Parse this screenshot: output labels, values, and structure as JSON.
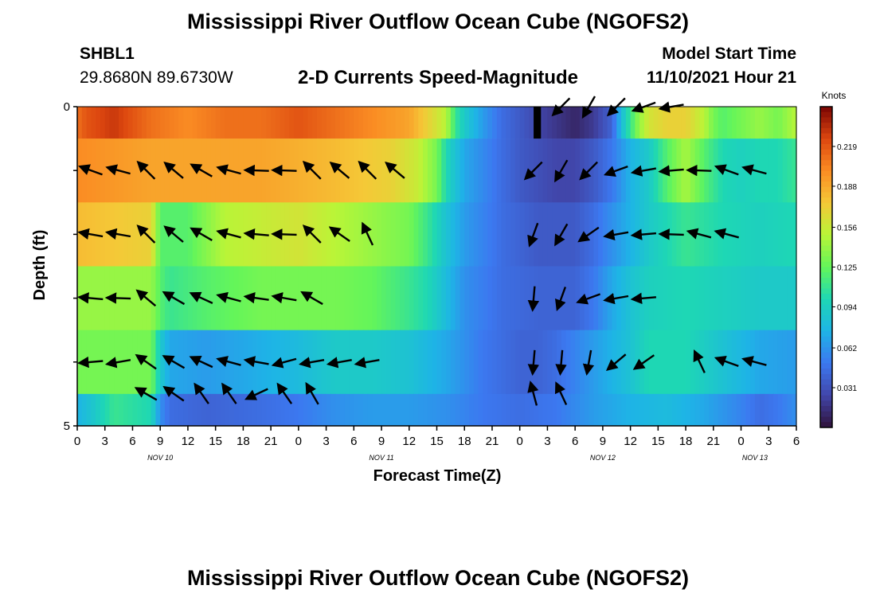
{
  "chart_data": {
    "type": "heatmap",
    "title": "Mississippi River Outflow Ocean Cube (NGOFS2)",
    "subtitle": "2-D Currents Speed-Magnitude",
    "station": {
      "id": "SHBL1",
      "coords": "29.8680N  89.6730W"
    },
    "model": {
      "start_label": "Model Start Time",
      "start_value": "11/10/2021 Hour 21"
    },
    "xlabel": "Forecast Time(Z)",
    "ylabel": "Depth (ft)",
    "x_tick_labels": [
      "0",
      "3",
      "6",
      "9",
      "12",
      "15",
      "18",
      "21",
      "0",
      "3",
      "6",
      "9",
      "12",
      "15",
      "18",
      "21",
      "0",
      "3",
      "6",
      "9",
      "12",
      "15",
      "18",
      "21",
      "0",
      "3",
      "6"
    ],
    "date_labels": [
      {
        "text": "NOV 10",
        "hour_index": 3
      },
      {
        "text": "NOV 11",
        "hour_index": 11
      },
      {
        "text": "NOV 12",
        "hour_index": 19
      },
      {
        "text": "NOV 13",
        "hour_index": 24.5
      }
    ],
    "y_tick_labels": [
      "0",
      "5"
    ],
    "ylim": [
      0,
      5
    ],
    "xlim_hours": [
      0,
      78
    ],
    "colorbar": {
      "unit": "Knots",
      "min": 0.0,
      "max": 0.25,
      "tick_values": [
        0.219,
        0.188,
        0.156,
        0.125,
        0.094,
        0.062,
        0.031
      ],
      "tick_labels": [
        "0.219",
        "0.188",
        "0.156",
        "0.125",
        "0.094",
        "0.062",
        "0.031"
      ]
    },
    "layers": [
      {
        "depth_range": [
          0,
          0.5
        ],
        "speed_keys": [
          [
            0,
            0.21
          ],
          [
            1,
            0.22
          ],
          [
            4,
            0.23
          ],
          [
            8,
            0.21
          ],
          [
            12,
            0.2
          ],
          [
            16,
            0.21
          ],
          [
            20,
            0.21
          ],
          [
            24,
            0.22
          ],
          [
            28,
            0.21
          ],
          [
            32,
            0.2
          ],
          [
            36,
            0.19
          ],
          [
            38,
            0.17
          ],
          [
            40,
            0.15
          ],
          [
            41,
            0.11
          ],
          [
            42,
            0.09
          ],
          [
            44,
            0.065
          ],
          [
            46,
            0.045
          ],
          [
            48,
            0.035
          ],
          [
            50,
            0.025
          ],
          [
            54,
            0.01
          ],
          [
            56,
            0.02
          ],
          [
            58,
            0.04
          ],
          [
            59,
            0.08
          ],
          [
            60,
            0.11
          ],
          [
            61,
            0.14
          ],
          [
            62,
            0.16
          ],
          [
            64,
            0.17
          ],
          [
            66,
            0.17
          ],
          [
            68,
            0.15
          ],
          [
            69,
            0.13
          ],
          [
            70,
            0.12
          ],
          [
            72,
            0.13
          ],
          [
            74,
            0.14
          ],
          [
            76,
            0.13
          ],
          [
            77,
            0.14
          ],
          [
            78,
            0.15
          ]
        ]
      },
      {
        "depth_range": [
          0.5,
          1.5
        ],
        "speed_keys": [
          [
            0,
            0.2
          ],
          [
            8,
            0.19
          ],
          [
            20,
            0.19
          ],
          [
            28,
            0.18
          ],
          [
            34,
            0.17
          ],
          [
            37,
            0.155
          ],
          [
            39,
            0.13
          ],
          [
            40,
            0.1
          ],
          [
            42,
            0.07
          ],
          [
            46,
            0.045
          ],
          [
            48,
            0.035
          ],
          [
            52,
            0.025
          ],
          [
            54,
            0.025
          ],
          [
            56,
            0.035
          ],
          [
            58,
            0.05
          ],
          [
            60,
            0.075
          ],
          [
            62,
            0.09
          ],
          [
            64,
            0.12
          ],
          [
            66,
            0.145
          ],
          [
            68,
            0.12
          ],
          [
            70,
            0.1
          ],
          [
            72,
            0.095
          ],
          [
            74,
            0.1
          ],
          [
            76,
            0.1
          ],
          [
            78,
            0.11
          ]
        ]
      },
      {
        "depth_range": [
          1.5,
          2.5
        ],
        "speed_keys": [
          [
            0,
            0.18
          ],
          [
            8,
            0.17
          ],
          [
            9,
            0.12
          ],
          [
            12,
            0.12
          ],
          [
            16,
            0.15
          ],
          [
            24,
            0.16
          ],
          [
            32,
            0.14
          ],
          [
            36,
            0.13
          ],
          [
            38,
            0.11
          ],
          [
            40,
            0.085
          ],
          [
            42,
            0.065
          ],
          [
            46,
            0.045
          ],
          [
            50,
            0.035
          ],
          [
            54,
            0.035
          ],
          [
            56,
            0.045
          ],
          [
            58,
            0.06
          ],
          [
            60,
            0.075
          ],
          [
            62,
            0.09
          ],
          [
            64,
            0.1
          ],
          [
            66,
            0.11
          ],
          [
            70,
            0.1
          ],
          [
            74,
            0.095
          ],
          [
            78,
            0.1
          ]
        ]
      },
      {
        "depth_range": [
          2.5,
          3.5
        ],
        "speed_keys": [
          [
            0,
            0.14
          ],
          [
            8,
            0.14
          ],
          [
            9,
            0.12
          ],
          [
            10,
            0.11
          ],
          [
            14,
            0.12
          ],
          [
            20,
            0.13
          ],
          [
            28,
            0.13
          ],
          [
            32,
            0.125
          ],
          [
            36,
            0.11
          ],
          [
            38,
            0.1
          ],
          [
            40,
            0.08
          ],
          [
            42,
            0.06
          ],
          [
            46,
            0.045
          ],
          [
            50,
            0.04
          ],
          [
            54,
            0.04
          ],
          [
            56,
            0.05
          ],
          [
            58,
            0.07
          ],
          [
            60,
            0.085
          ],
          [
            62,
            0.095
          ],
          [
            66,
            0.1
          ],
          [
            70,
            0.095
          ],
          [
            74,
            0.09
          ],
          [
            78,
            0.09
          ]
        ]
      },
      {
        "depth_range": [
          3.5,
          4.5
        ],
        "speed_keys": [
          [
            0,
            0.13
          ],
          [
            8,
            0.13
          ],
          [
            9,
            0.09
          ],
          [
            10,
            0.07
          ],
          [
            14,
            0.065
          ],
          [
            18,
            0.07
          ],
          [
            24,
            0.08
          ],
          [
            28,
            0.09
          ],
          [
            32,
            0.09
          ],
          [
            36,
            0.085
          ],
          [
            40,
            0.07
          ],
          [
            44,
            0.05
          ],
          [
            48,
            0.04
          ],
          [
            50,
            0.04
          ],
          [
            52,
            0.045
          ],
          [
            56,
            0.065
          ],
          [
            60,
            0.085
          ],
          [
            62,
            0.1
          ],
          [
            66,
            0.1
          ],
          [
            70,
            0.085
          ],
          [
            74,
            0.07
          ],
          [
            78,
            0.065
          ]
        ]
      },
      {
        "depth_range": [
          4.5,
          5.0
        ],
        "speed_keys": [
          [
            0,
            0.075
          ],
          [
            2,
            0.09
          ],
          [
            4,
            0.11
          ],
          [
            8,
            0.1
          ],
          [
            9,
            0.06
          ],
          [
            10,
            0.045
          ],
          [
            14,
            0.04
          ],
          [
            20,
            0.045
          ],
          [
            24,
            0.05
          ],
          [
            28,
            0.06
          ],
          [
            32,
            0.065
          ],
          [
            36,
            0.065
          ],
          [
            40,
            0.06
          ],
          [
            44,
            0.05
          ],
          [
            48,
            0.045
          ],
          [
            52,
            0.05
          ],
          [
            56,
            0.065
          ],
          [
            60,
            0.075
          ],
          [
            64,
            0.08
          ],
          [
            68,
            0.07
          ],
          [
            72,
            0.055
          ],
          [
            74,
            0.045
          ],
          [
            76,
            0.05
          ],
          [
            78,
            0.06
          ]
        ]
      }
    ],
    "missing": [
      {
        "hour_range": [
          49.5,
          50.3
        ],
        "depth_range": [
          0,
          0.5
        ]
      }
    ],
    "vectors": [
      {
        "depth": 0,
        "angles": [
          null,
          null,
          null,
          null,
          null,
          null,
          null,
          null,
          null,
          null,
          null,
          null,
          null,
          null,
          null,
          null,
          null,
          -135,
          -120,
          -135,
          -160,
          -170,
          null,
          null,
          null,
          null,
          null
        ]
      },
      {
        "depth": 1,
        "angles": [
          160,
          165,
          135,
          140,
          150,
          165,
          178,
          178,
          135,
          140,
          135,
          140,
          null,
          null,
          null,
          null,
          -135,
          -120,
          -135,
          -160,
          -170,
          -175,
          178,
          160,
          165,
          null,
          null
        ]
      },
      {
        "depth": 2,
        "angles": [
          170,
          170,
          135,
          140,
          150,
          165,
          175,
          178,
          135,
          145,
          115,
          null,
          null,
          null,
          null,
          null,
          -110,
          -120,
          -145,
          -170,
          -175,
          178,
          165,
          165,
          null,
          null,
          null
        ]
      },
      {
        "depth": 3,
        "angles": [
          175,
          178,
          140,
          150,
          155,
          165,
          172,
          170,
          150,
          null,
          null,
          null,
          null,
          null,
          null,
          null,
          -95,
          -110,
          -160,
          -170,
          -175,
          null,
          null,
          null,
          null,
          null,
          null
        ]
      },
      {
        "depth": 4,
        "angles": [
          -175,
          -170,
          145,
          150,
          155,
          165,
          170,
          -165,
          -170,
          -170,
          -170,
          null,
          null,
          null,
          null,
          null,
          -95,
          -95,
          -100,
          -140,
          -145,
          null,
          115,
          160,
          165,
          null,
          null
        ]
      },
      {
        "depth": 4.5,
        "angles": [
          null,
          null,
          150,
          145,
          125,
          125,
          -155,
          125,
          120,
          null,
          null,
          null,
          null,
          null,
          null,
          null,
          105,
          115,
          null,
          null,
          null,
          null,
          null,
          null,
          null,
          null,
          null
        ]
      }
    ]
  }
}
